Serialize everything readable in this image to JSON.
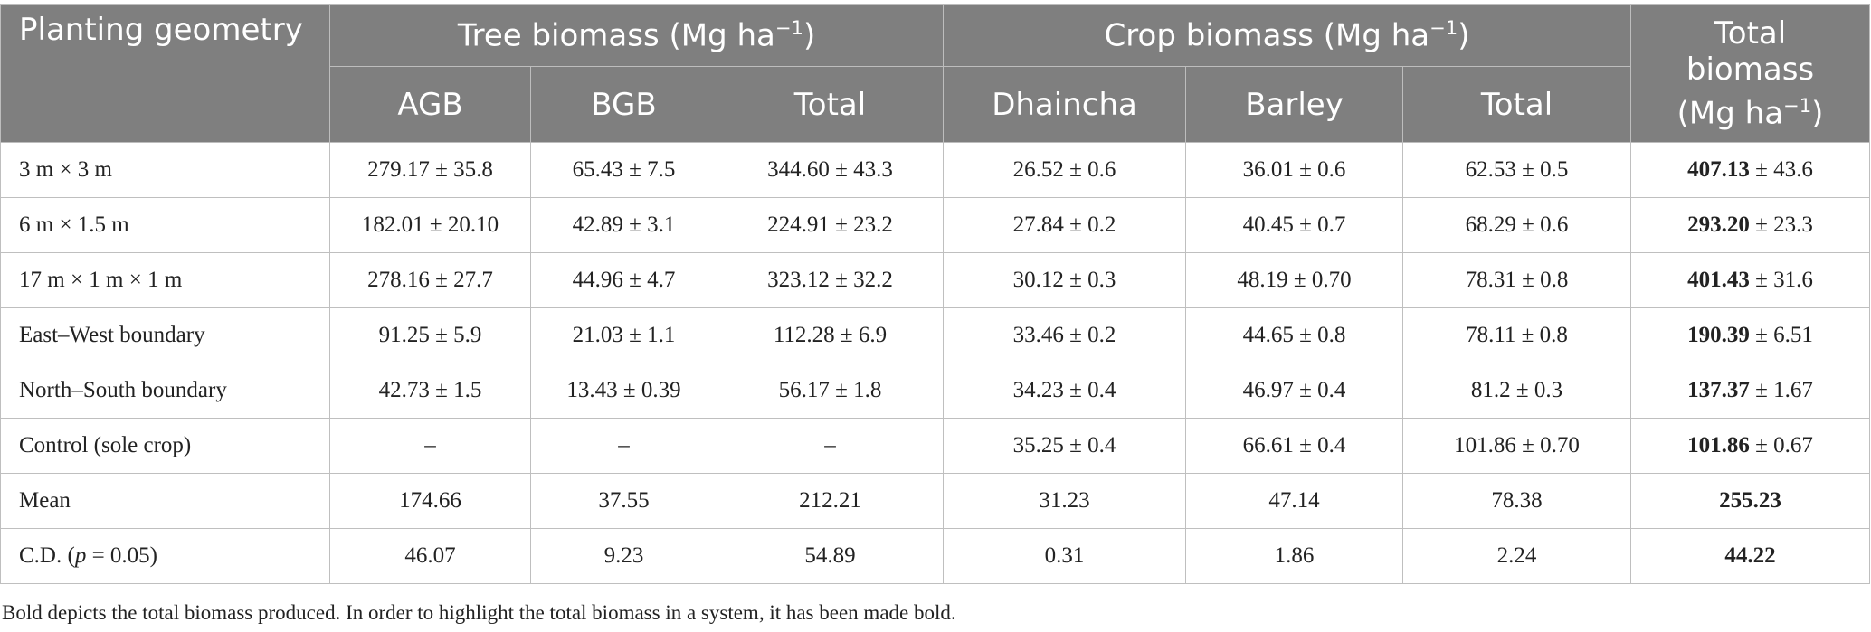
{
  "header": {
    "planting_geometry": "Planting geometry",
    "tree_biomass": "Tree biomass (Mg ha",
    "tree_biomass_sup": "−1",
    "tree_biomass_close": ")",
    "crop_biomass": "Crop biomass (Mg ha",
    "crop_biomass_sup": "−1",
    "crop_biomass_close": ")",
    "total_biomass_line1": "Total",
    "total_biomass_line2": "biomass",
    "total_biomass_line3": "(Mg ha",
    "total_biomass_sup": "−1",
    "total_biomass_close": ")",
    "sub": [
      "AGB",
      "BGB",
      "Total",
      "Dhaincha",
      "Barley",
      "Total"
    ]
  },
  "rows": [
    {
      "label": "3 m × 3 m",
      "agb": "279.17 ± 35.8",
      "bgb": "65.43 ± 7.5",
      "tree_total": "344.60 ± 43.3",
      "dhaincha": "26.52 ± 0.6",
      "barley": "36.01 ± 0.6",
      "crop_total": "62.53 ± 0.5",
      "total_bold": "407.13",
      "total_rest": " ± 43.6"
    },
    {
      "label": "6 m × 1.5 m",
      "agb": "182.01 ± 20.10",
      "bgb": "42.89 ± 3.1",
      "tree_total": "224.91 ± 23.2",
      "dhaincha": "27.84 ± 0.2",
      "barley": "40.45 ± 0.7",
      "crop_total": "68.29 ± 0.6",
      "total_bold": "293.20",
      "total_rest": " ± 23.3"
    },
    {
      "label": "17 m × 1 m × 1 m",
      "agb": "278.16 ± 27.7",
      "bgb": "44.96 ± 4.7",
      "tree_total": "323.12 ± 32.2",
      "dhaincha": "30.12 ± 0.3",
      "barley": "48.19 ± 0.70",
      "crop_total": "78.31 ± 0.8",
      "total_bold": "401.43",
      "total_rest": " ± 31.6"
    },
    {
      "label": "East–West boundary",
      "agb": "91.25 ± 5.9",
      "bgb": "21.03 ± 1.1",
      "tree_total": "112.28 ± 6.9",
      "dhaincha": "33.46 ± 0.2",
      "barley": "44.65 ± 0.8",
      "crop_total": "78.11 ± 0.8",
      "total_bold": "190.39",
      "total_rest": " ± 6.51"
    },
    {
      "label": "North–South boundary",
      "agb": "42.73 ± 1.5",
      "bgb": "13.43 ± 0.39",
      "tree_total": "56.17 ± 1.8",
      "dhaincha": "34.23 ± 0.4",
      "barley": "46.97 ± 0.4",
      "crop_total": "81.2 ± 0.3",
      "total_bold": "137.37",
      "total_rest": " ± 1.67"
    },
    {
      "label": "Control (sole crop)",
      "agb": "–",
      "bgb": "–",
      "tree_total": "–",
      "dhaincha": "35.25 ± 0.4",
      "barley": "66.61 ± 0.4",
      "crop_total": "101.86 ± 0.70",
      "total_bold": "101.86",
      "total_rest": " ± 0.67"
    },
    {
      "label": "Mean",
      "agb": "174.66",
      "bgb": "37.55",
      "tree_total": "212.21",
      "dhaincha": "31.23",
      "barley": "47.14",
      "crop_total": "78.38",
      "total_bold": "255.23",
      "total_rest": ""
    }
  ],
  "cd_row": {
    "label_prefix": "C.D. (",
    "label_p": "p",
    "label_suffix": " = 0.05)",
    "agb": "46.07",
    "bgb": "9.23",
    "tree_total": "54.89",
    "dhaincha": "0.31",
    "barley": "1.86",
    "crop_total": "2.24",
    "total_bold": "44.22"
  },
  "footnote": "Bold depicts the total biomass produced. In order to highlight the total biomass in a system, it has been made bold."
}
